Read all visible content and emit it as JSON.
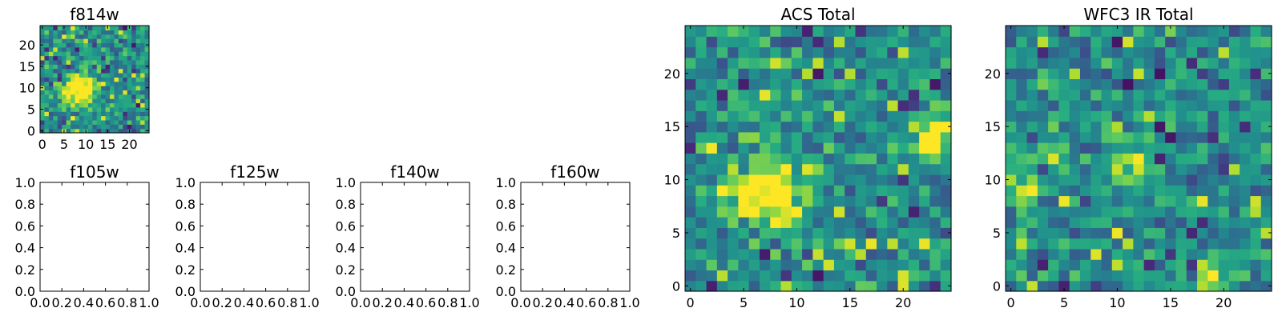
{
  "chart_data": [
    {
      "type": "heatmap",
      "title": "f814w",
      "colormap": "viridis",
      "grid_size": 25,
      "xlim": [
        -0.5,
        24.5
      ],
      "ylim": [
        -0.5,
        24.5
      ],
      "xticks": [
        0,
        5,
        10,
        15,
        20
      ],
      "yticks": [
        0,
        5,
        10,
        15,
        20
      ],
      "xtick_labels": [
        "0",
        "5",
        "10",
        "15",
        "20"
      ],
      "ytick_labels": [
        "0",
        "5",
        "10",
        "15",
        "20"
      ],
      "value_range": [
        0,
        1
      ],
      "seed": 11,
      "hot_spots": [
        {
          "x": 8,
          "y": 9,
          "r": 2.8
        },
        {
          "x": 9.5,
          "y": 10.5,
          "r": 1.8
        }
      ]
    },
    {
      "type": "empty",
      "title": "f105w",
      "xlim": [
        0.0,
        1.0
      ],
      "ylim": [
        0.0,
        1.0
      ],
      "xticks": [
        0,
        0.2,
        0.4,
        0.6,
        0.8,
        1.0
      ],
      "yticks": [
        0,
        0.2,
        0.4,
        0.6,
        0.8,
        1.0
      ],
      "xtick_labels": [
        "0.0",
        "0.2",
        "0.4",
        "0.6",
        "0.8",
        "1.0"
      ],
      "ytick_labels": [
        "0.0",
        "0.2",
        "0.4",
        "0.6",
        "0.8",
        "1.0"
      ]
    },
    {
      "type": "empty",
      "title": "f125w",
      "xlim": [
        0.0,
        1.0
      ],
      "ylim": [
        0.0,
        1.0
      ],
      "xticks": [
        0,
        0.2,
        0.4,
        0.6,
        0.8,
        1.0
      ],
      "yticks": [
        0,
        0.2,
        0.4,
        0.6,
        0.8,
        1.0
      ],
      "xtick_labels": [
        "0.0",
        "0.2",
        "0.4",
        "0.6",
        "0.8",
        "1.0"
      ],
      "ytick_labels": [
        "0.0",
        "0.2",
        "0.4",
        "0.6",
        "0.8",
        "1.0"
      ]
    },
    {
      "type": "empty",
      "title": "f140w",
      "xlim": [
        0.0,
        1.0
      ],
      "ylim": [
        0.0,
        1.0
      ],
      "xticks": [
        0,
        0.2,
        0.4,
        0.6,
        0.8,
        1.0
      ],
      "yticks": [
        0,
        0.2,
        0.4,
        0.6,
        0.8,
        1.0
      ],
      "xtick_labels": [
        "0.0",
        "0.2",
        "0.4",
        "0.6",
        "0.8",
        "1.0"
      ],
      "ytick_labels": [
        "0.0",
        "0.2",
        "0.4",
        "0.6",
        "0.8",
        "1.0"
      ]
    },
    {
      "type": "empty",
      "title": "f160w",
      "xlim": [
        0.0,
        1.0
      ],
      "ylim": [
        0.0,
        1.0
      ],
      "xticks": [
        0,
        0.2,
        0.4,
        0.6,
        0.8,
        1.0
      ],
      "yticks": [
        0,
        0.2,
        0.4,
        0.6,
        0.8,
        1.0
      ],
      "xtick_labels": [
        "0.0",
        "0.2",
        "0.4",
        "0.6",
        "0.8",
        "1.0"
      ],
      "ytick_labels": [
        "0.0",
        "0.2",
        "0.4",
        "0.6",
        "0.8",
        "1.0"
      ]
    },
    {
      "type": "heatmap",
      "title": "ACS Total",
      "colormap": "viridis",
      "grid_size": 25,
      "xlim": [
        -0.5,
        24.5
      ],
      "ylim": [
        -0.5,
        24.5
      ],
      "xticks": [
        0,
        5,
        10,
        15,
        20
      ],
      "yticks": [
        0,
        5,
        10,
        15,
        20
      ],
      "xtick_labels": [
        "0",
        "5",
        "10",
        "15",
        "20"
      ],
      "ytick_labels": [
        "0",
        "5",
        "10",
        "15",
        "20"
      ],
      "value_range": [
        0,
        1
      ],
      "seed": 27,
      "hot_spots": [
        {
          "x": 8,
          "y": 9,
          "r": 2.6
        },
        {
          "x": 5,
          "y": 9,
          "r": 1.5
        },
        {
          "x": 23,
          "y": 14,
          "r": 1.5
        }
      ]
    },
    {
      "type": "heatmap",
      "title": "WFC3 IR Total",
      "colormap": "viridis",
      "grid_size": 25,
      "xlim": [
        -0.5,
        24.5
      ],
      "ylim": [
        -0.5,
        24.5
      ],
      "xticks": [
        0,
        5,
        10,
        15,
        20
      ],
      "yticks": [
        0,
        5,
        10,
        15,
        20
      ],
      "xtick_labels": [
        "0",
        "5",
        "10",
        "15",
        "20"
      ],
      "ytick_labels": [
        "0",
        "5",
        "10",
        "15",
        "20"
      ],
      "value_range": [
        0,
        1
      ],
      "seed": 53,
      "hot_spots": [
        {
          "x": 1.5,
          "y": 9.5,
          "r": 1.2
        },
        {
          "x": 11.5,
          "y": 11.5,
          "r": 1.2
        },
        {
          "x": 18.5,
          "y": 1,
          "r": 0.9
        }
      ]
    }
  ]
}
